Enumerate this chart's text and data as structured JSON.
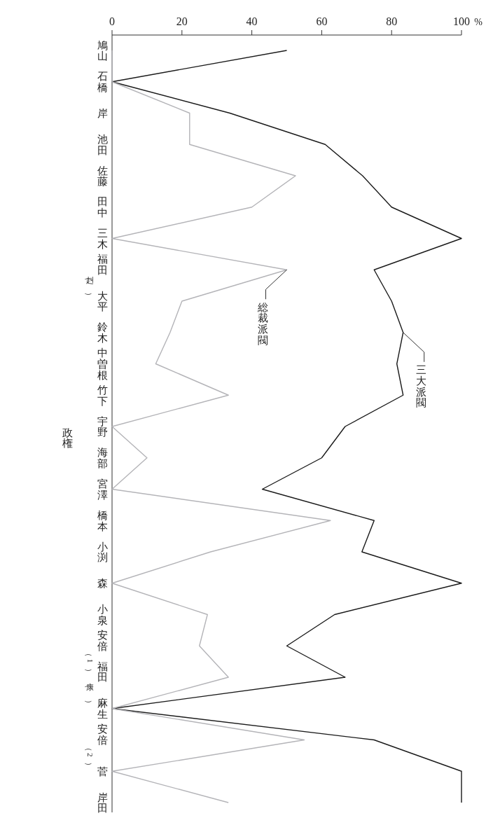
{
  "chart_data": {
    "type": "line",
    "xlabel": "政権",
    "ylabel": "%",
    "categories": [
      "鳩山",
      "石橋",
      "岸",
      "池田",
      "佐藤",
      "田中",
      "三木",
      "福田（赳）",
      "大平",
      "鈴木",
      "中曽根",
      "竹下",
      "宇野",
      "海部",
      "宮澤",
      "橋本",
      "小渕",
      "森",
      "小泉",
      "安倍（1）",
      "福田（康）",
      "麻生",
      "安倍（2）",
      "菅",
      "岸田"
    ],
    "series": [
      {
        "name": "三大派閥",
        "color": "#1a1a1a",
        "values": [
          50,
          0,
          33.7,
          61,
          71.7,
          80,
          100,
          75,
          80,
          83.3,
          81.5,
          83.3,
          66.7,
          60,
          43,
          75,
          71.5,
          100,
          63.7,
          50,
          66.7,
          0,
          75,
          100,
          100
        ]
      },
      {
        "name": "総裁派閥",
        "color": "#b4b4b8",
        "values": [
          0,
          0,
          22.2,
          22.2,
          52.5,
          40,
          0,
          50,
          20,
          16.6,
          12.5,
          33.3,
          0,
          10,
          0,
          62.5,
          28.2,
          0,
          27.3,
          25,
          33.3,
          0,
          55,
          0,
          33.3
        ]
      }
    ],
    "orientation": "horizontal",
    "xlim": [
      0,
      100
    ],
    "xticks": [
      0,
      20,
      40,
      60,
      80,
      100
    ],
    "legend": false,
    "grid": false,
    "marker": "none",
    "line_style": "solid"
  }
}
